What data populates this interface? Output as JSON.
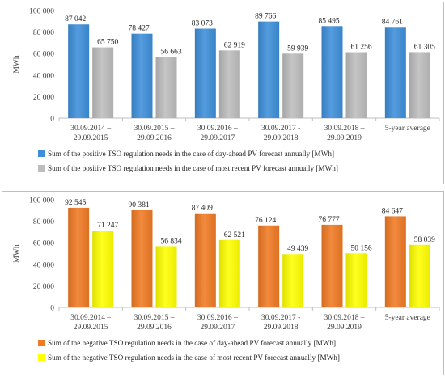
{
  "chart_data": [
    {
      "type": "bar",
      "ylabel": "MWh",
      "ylim": [
        0,
        100000
      ],
      "yticks": [
        0,
        20000,
        40000,
        60000,
        80000,
        100000
      ],
      "ytick_labels": [
        "0",
        "20 000",
        "40 000",
        "60 000",
        "80 000",
        "100 000"
      ],
      "grid": false,
      "legend_position": "bottom",
      "categories": [
        [
          "30.09.2014 –",
          "29.09.2015"
        ],
        [
          "30.09.2015 –",
          "29.09.2016"
        ],
        [
          "30.09.2016 –",
          "29.09.2017"
        ],
        [
          "30.09.2017 -",
          "29.09.2018"
        ],
        [
          "30.09.2018 –",
          "29.09.2019"
        ],
        [
          "5-year average"
        ]
      ],
      "series": [
        {
          "name": "Sum of the positive TSO regulation needs in the case of day-ahead PV forecast annually [MWh]",
          "color": "#3d8fd9",
          "values": [
            87042,
            78427,
            83073,
            89766,
            85495,
            84761
          ],
          "labels": [
            "87 042",
            "78 427",
            "83 073",
            "89 766",
            "85 495",
            "84 761"
          ]
        },
        {
          "name": "Sum of the positive TSO regulation needs in the case of most recent PV forecast annually [MWh]",
          "color": "#bdbdbd",
          "values": [
            65750,
            56663,
            62919,
            59939,
            61256,
            61305
          ],
          "labels": [
            "65 750",
            "56 663",
            "62 919",
            "59 939",
            "61 256",
            "61 305"
          ]
        }
      ]
    },
    {
      "type": "bar",
      "ylabel": "MWh",
      "ylim": [
        0,
        100000
      ],
      "yticks": [
        0,
        20000,
        40000,
        60000,
        80000,
        100000
      ],
      "ytick_labels": [
        "0",
        "20 000",
        "40 000",
        "60 000",
        "80 000",
        "100 000"
      ],
      "grid": false,
      "legend_position": "bottom",
      "categories": [
        [
          "30.09.2014 –",
          "29.09.2015"
        ],
        [
          "30.09.2015 –",
          "29.09.2016"
        ],
        [
          "30.09.2016 –",
          "29.09.2017"
        ],
        [
          "30.09.2017 -",
          "29.09.2018"
        ],
        [
          "30.09.2018 –",
          "29.09.2019"
        ],
        [
          "5-year average"
        ]
      ],
      "series": [
        {
          "name": "Sum of the negative TSO regulation needs in the case of day-ahead PV forecast annually [MWh]",
          "color": "#f07a24",
          "values": [
            92545,
            90381,
            87409,
            76124,
            76777,
            84647
          ],
          "labels": [
            "92 545",
            "90 381",
            "87 409",
            "76 124",
            "76 777",
            "84 647"
          ]
        },
        {
          "name": "Sum of the negative TSO regulation needs in the case of most recent PV forecast annually [MWh]",
          "color": "#ffff00",
          "values": [
            71247,
            56834,
            62521,
            49439,
            50156,
            58039
          ],
          "labels": [
            "71 247",
            "56 834",
            "62 521",
            "49 439",
            "50 156",
            "58 039"
          ]
        }
      ]
    }
  ]
}
